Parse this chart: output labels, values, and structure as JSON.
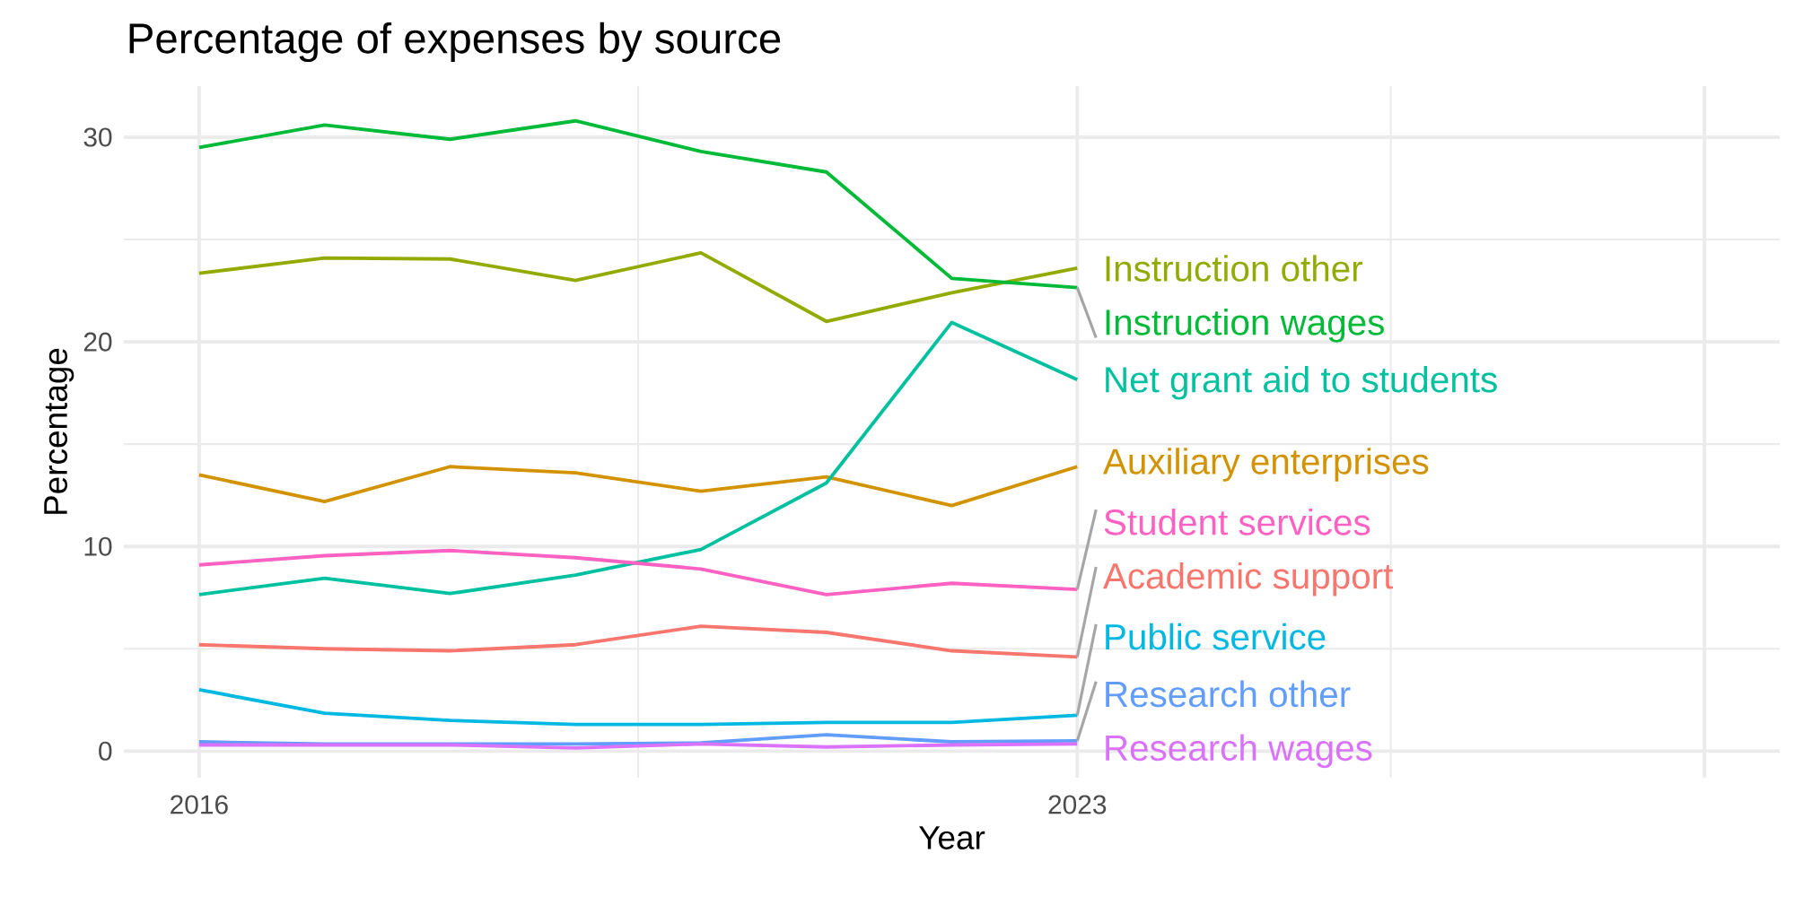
{
  "chart_data": {
    "type": "line",
    "title": "Percentage of expenses by source",
    "xlabel": "Year",
    "ylabel": "Percentage",
    "x": [
      2016,
      2017,
      2018,
      2019,
      2020,
      2021,
      2022,
      2023
    ],
    "xlim": [
      2015.4,
      2028.6
    ],
    "ylim": [
      -1.3,
      32.5
    ],
    "xticks": [
      2016,
      2023,
      {
        "value": 2028,
        "label": null
      }
    ],
    "yticks": [
      0,
      10,
      20,
      30
    ],
    "grid": true,
    "legend": false,
    "line_style": "solid",
    "marker": "none",
    "series": [
      {
        "name": "Academic support",
        "color": "#f8766d",
        "values": [
          5.2,
          5.0,
          4.9,
          5.2,
          6.1,
          5.8,
          4.9,
          4.6
        ]
      },
      {
        "name": "Auxiliary enterprises",
        "color": "#d39200",
        "values": [
          13.5,
          12.2,
          13.9,
          13.6,
          12.7,
          13.4,
          12.0,
          13.9
        ]
      },
      {
        "name": "Instruction other",
        "color": "#93aa00",
        "values": [
          23.35,
          24.1,
          24.05,
          23.0,
          24.35,
          21.0,
          22.4,
          23.6
        ]
      },
      {
        "name": "Instruction wages",
        "color": "#00ba38",
        "values": [
          29.5,
          30.6,
          29.9,
          30.8,
          29.3,
          28.3,
          23.1,
          22.65
        ]
      },
      {
        "name": "Net grant aid to students",
        "color": "#00c19f",
        "values": [
          7.65,
          8.45,
          7.7,
          8.6,
          9.85,
          13.1,
          20.95,
          18.15
        ]
      },
      {
        "name": "Public service",
        "color": "#00b9e3",
        "values": [
          3.0,
          1.85,
          1.5,
          1.3,
          1.3,
          1.4,
          1.4,
          1.75
        ]
      },
      {
        "name": "Research other",
        "color": "#619cff",
        "values": [
          0.45,
          0.35,
          0.35,
          0.35,
          0.4,
          0.8,
          0.45,
          0.5
        ]
      },
      {
        "name": "Research wages",
        "color": "#db72fb",
        "values": [
          0.3,
          0.3,
          0.3,
          0.15,
          0.35,
          0.2,
          0.3,
          0.35
        ]
      },
      {
        "name": "Student services",
        "color": "#ff61c3",
        "values": [
          9.1,
          9.55,
          9.8,
          9.45,
          8.9,
          7.65,
          8.2,
          7.9
        ]
      }
    ]
  }
}
